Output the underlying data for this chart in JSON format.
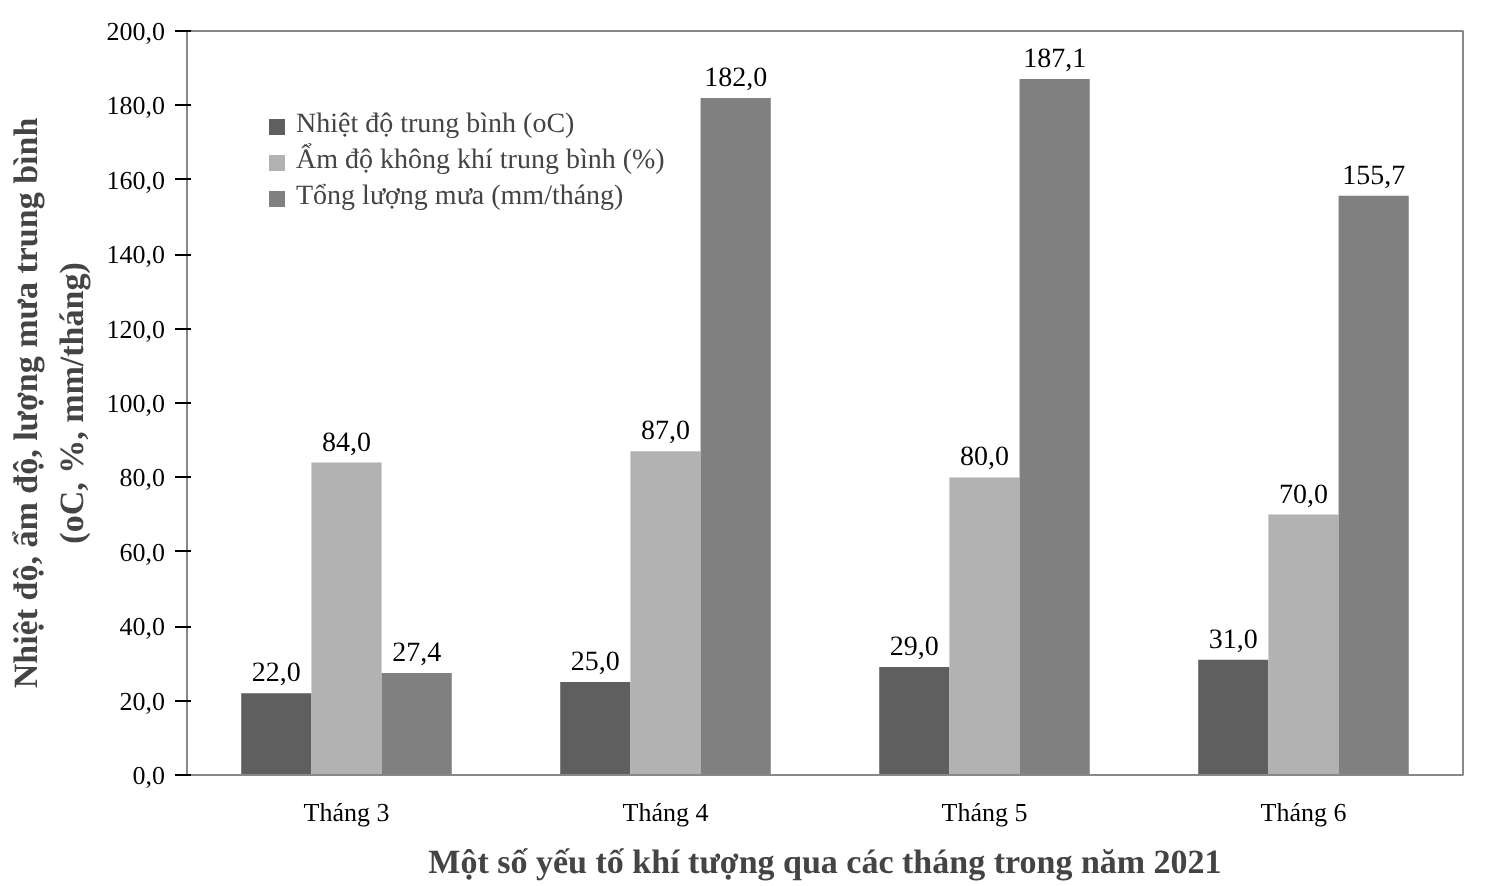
{
  "chart_data": {
    "type": "bar",
    "xlabel": "Một số yếu tố khí tượng qua các tháng trong năm 2021",
    "ylabel": "Nhiệt độ, ẩm độ, lượng mưa trung bình\n(oC, %, mm/tháng)",
    "categories": [
      "Tháng 3",
      "Tháng 4",
      "Tháng 5",
      "Tháng 6"
    ],
    "series": [
      {
        "name": "Nhiệt độ trung bình (oC)",
        "color": "#5f5f5f",
        "values": [
          22.0,
          25.0,
          29.0,
          31.0
        ],
        "value_labels": [
          "22,0",
          "25,0",
          "29,0",
          "31,0"
        ]
      },
      {
        "name": "Ẩm độ không khí trung bình (%)",
        "color": "#b2b2b2",
        "values": [
          84.0,
          87.0,
          80.0,
          70.0
        ],
        "value_labels": [
          "84,0",
          "87,0",
          "80,0",
          "70,0"
        ]
      },
      {
        "name": "Tổng lượng mưa (mm/tháng)",
        "color": "#808080",
        "values": [
          27.4,
          182.0,
          187.1,
          155.7
        ],
        "value_labels": [
          "27,4",
          "182,0",
          "187,1",
          "155,7"
        ]
      }
    ],
    "ylim": [
      0,
      200
    ],
    "yticks": [
      {
        "value": 0,
        "label": "0,0"
      },
      {
        "value": 20,
        "label": "20,0"
      },
      {
        "value": 40,
        "label": "40,0"
      },
      {
        "value": 60,
        "label": "60,0"
      },
      {
        "value": 80,
        "label": "80,0"
      },
      {
        "value": 100,
        "label": "100,0"
      },
      {
        "value": 120,
        "label": "120,0"
      },
      {
        "value": 140,
        "label": "140,0"
      },
      {
        "value": 160,
        "label": "160,0"
      },
      {
        "value": 180,
        "label": "180,0"
      },
      {
        "value": 200,
        "label": "200,0"
      }
    ],
    "grid": false,
    "legend": "top left"
  }
}
